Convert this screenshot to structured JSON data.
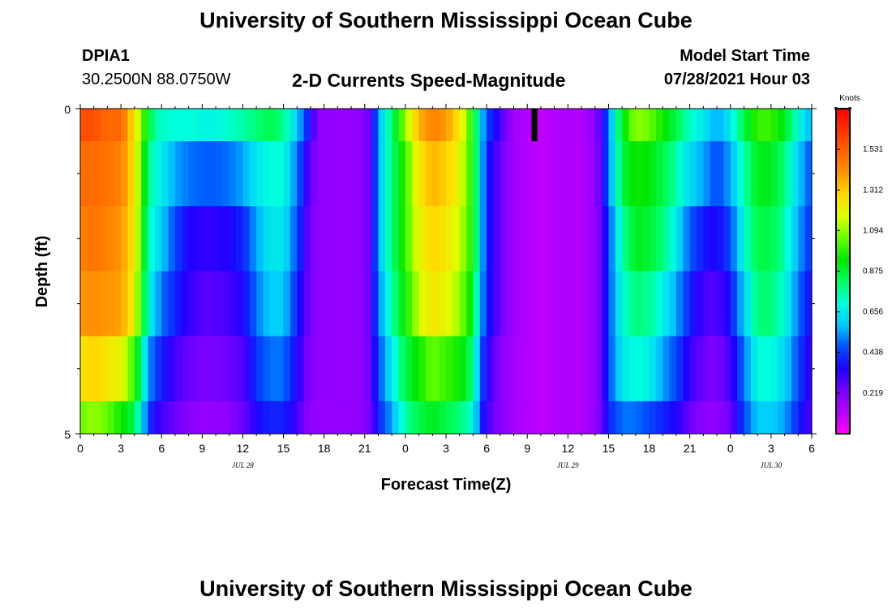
{
  "page": {
    "title_top": "University of Southern Mississippi Ocean Cube",
    "title_bottom": "University of Southern Mississippi Ocean Cube",
    "station": "DPIA1",
    "coords": "30.2500N  88.0750W",
    "plot_title": "2-D Currents Speed-Magnitude",
    "model_label": "Model Start Time",
    "model_time": "07/28/2021 Hour 03"
  },
  "chart_data": {
    "type": "heatmap",
    "title": "2-D Currents Speed-Magnitude",
    "xlabel": "Forecast Time(Z)",
    "ylabel": "Depth (ft)",
    "ylim": [
      0,
      5
    ],
    "xlim_hours": [
      0,
      54
    ],
    "x_tick_labels": [
      "0",
      "3",
      "6",
      "9",
      "12",
      "15",
      "18",
      "21",
      "0",
      "3",
      "6",
      "9",
      "12",
      "15",
      "18",
      "21",
      "0",
      "3",
      "6"
    ],
    "date_labels": [
      {
        "hour": 12,
        "text": "JUL 28"
      },
      {
        "hour": 36,
        "text": "JUL 29"
      },
      {
        "hour": 51,
        "text": "JUL 30"
      }
    ],
    "y_tick_labels": [
      "0",
      "5"
    ],
    "y_minor_ticks": [
      1,
      2,
      3,
      4
    ],
    "depth_bins": [
      "0-0.5",
      "0.5-1.5",
      "1.5-2.5",
      "2.5-3.5",
      "3.5-4.5",
      "4.5-5"
    ],
    "hour_step": 0.5,
    "anchor_hours": [
      0,
      1,
      2,
      3,
      4,
      5,
      5.5,
      6,
      7,
      8,
      9,
      10,
      11,
      12,
      13,
      14,
      15,
      16,
      17,
      17.5,
      18,
      19,
      20,
      21,
      21.5,
      22,
      23,
      24,
      25,
      26,
      27,
      28,
      29,
      29.5,
      30,
      31,
      32,
      33,
      34,
      35,
      36,
      37,
      38,
      38.5,
      39,
      40,
      41,
      42,
      43,
      44,
      45,
      46,
      47,
      48,
      49,
      50,
      51,
      52,
      53,
      54
    ],
    "speed_knots": [
      [
        1.56,
        1.57,
        1.5,
        1.52,
        1.25,
        0.9,
        0.75,
        0.72,
        0.7,
        0.7,
        0.68,
        0.68,
        0.72,
        0.75,
        0.8,
        0.85,
        0.78,
        0.6,
        0.35,
        0.2,
        0.18,
        0.18,
        0.18,
        0.2,
        0.3,
        0.55,
        0.8,
        1.1,
        1.35,
        1.45,
        1.4,
        1.25,
        0.95,
        0.65,
        0.45,
        0.3,
        0.15,
        0.12,
        0.1,
        0.12,
        0.12,
        0.12,
        0.2,
        0.3,
        0.5,
        0.9,
        1.1,
        1.05,
        0.95,
        0.85,
        0.72,
        0.65,
        0.55,
        0.65,
        0.85,
        1.0,
        1.0,
        0.9,
        0.7,
        0.55
      ],
      [
        1.5,
        1.5,
        1.48,
        1.45,
        1.25,
        0.8,
        0.7,
        0.66,
        0.55,
        0.5,
        0.48,
        0.48,
        0.5,
        0.55,
        0.65,
        0.7,
        0.7,
        0.5,
        0.25,
        0.2,
        0.18,
        0.18,
        0.18,
        0.2,
        0.3,
        0.55,
        0.8,
        1.0,
        1.25,
        1.35,
        1.3,
        1.2,
        0.95,
        0.65,
        0.4,
        0.25,
        0.15,
        0.12,
        0.1,
        0.12,
        0.12,
        0.12,
        0.18,
        0.3,
        0.5,
        0.85,
        0.95,
        0.92,
        0.85,
        0.75,
        0.62,
        0.55,
        0.45,
        0.55,
        0.75,
        0.9,
        0.9,
        0.8,
        0.6,
        0.45
      ],
      [
        1.45,
        1.48,
        1.45,
        1.4,
        1.25,
        0.75,
        0.66,
        0.6,
        0.45,
        0.35,
        0.33,
        0.33,
        0.35,
        0.4,
        0.55,
        0.65,
        0.65,
        0.45,
        0.22,
        0.2,
        0.18,
        0.18,
        0.18,
        0.2,
        0.3,
        0.55,
        0.8,
        1.0,
        1.2,
        1.3,
        1.25,
        1.15,
        0.95,
        0.65,
        0.4,
        0.25,
        0.15,
        0.12,
        0.1,
        0.12,
        0.12,
        0.12,
        0.18,
        0.25,
        0.45,
        0.75,
        0.9,
        0.87,
        0.8,
        0.65,
        0.48,
        0.38,
        0.35,
        0.45,
        0.7,
        0.85,
        0.85,
        0.75,
        0.55,
        0.4
      ],
      [
        1.4,
        1.42,
        1.4,
        1.38,
        1.22,
        0.7,
        0.6,
        0.5,
        0.4,
        0.32,
        0.28,
        0.28,
        0.3,
        0.35,
        0.5,
        0.6,
        0.6,
        0.4,
        0.22,
        0.2,
        0.18,
        0.18,
        0.18,
        0.2,
        0.3,
        0.5,
        0.75,
        0.95,
        1.15,
        1.25,
        1.2,
        1.1,
        0.9,
        0.6,
        0.4,
        0.25,
        0.15,
        0.12,
        0.1,
        0.12,
        0.12,
        0.12,
        0.18,
        0.25,
        0.45,
        0.7,
        0.8,
        0.77,
        0.68,
        0.55,
        0.4,
        0.3,
        0.28,
        0.38,
        0.6,
        0.8,
        0.8,
        0.7,
        0.5,
        0.35
      ],
      [
        1.25,
        1.3,
        1.25,
        1.2,
        1.0,
        0.55,
        0.45,
        0.4,
        0.3,
        0.25,
        0.23,
        0.23,
        0.25,
        0.28,
        0.42,
        0.5,
        0.5,
        0.35,
        0.2,
        0.2,
        0.18,
        0.18,
        0.18,
        0.2,
        0.28,
        0.45,
        0.65,
        0.85,
        0.95,
        1.05,
        1.0,
        0.95,
        0.8,
        0.5,
        0.35,
        0.2,
        0.15,
        0.12,
        0.1,
        0.12,
        0.12,
        0.12,
        0.18,
        0.25,
        0.45,
        0.65,
        0.7,
        0.67,
        0.55,
        0.45,
        0.32,
        0.25,
        0.22,
        0.3,
        0.5,
        0.7,
        0.7,
        0.62,
        0.45,
        0.3
      ],
      [
        1.05,
        1.1,
        1.05,
        0.95,
        0.85,
        0.45,
        0.35,
        0.3,
        0.25,
        0.2,
        0.18,
        0.18,
        0.2,
        0.25,
        0.35,
        0.4,
        0.4,
        0.3,
        0.18,
        0.18,
        0.18,
        0.18,
        0.18,
        0.2,
        0.25,
        0.4,
        0.55,
        0.75,
        0.85,
        0.9,
        0.85,
        0.8,
        0.7,
        0.45,
        0.3,
        0.2,
        0.15,
        0.12,
        0.1,
        0.12,
        0.12,
        0.12,
        0.18,
        0.25,
        0.4,
        0.5,
        0.5,
        0.45,
        0.4,
        0.35,
        0.25,
        0.2,
        0.18,
        0.25,
        0.45,
        0.6,
        0.6,
        0.55,
        0.4,
        0.28
      ]
    ],
    "speed_unit": "knots",
    "vmin": 0.0,
    "vmax": 1.75,
    "current_time_marker_hour": 33.5,
    "colorbar": {
      "label": "Knots",
      "tick_labels": [
        "1.531",
        "1.312",
        "1.094",
        "0.875",
        "0.656",
        "0.438",
        "0.219"
      ],
      "tick_values": [
        1.531,
        1.312,
        1.094,
        0.875,
        0.656,
        0.438,
        0.219
      ],
      "palette": [
        "#ff00ff",
        "#b400ff",
        "#7800ff",
        "#1e00ff",
        "#0050ff",
        "#00c8ff",
        "#00ffdc",
        "#00ff64",
        "#00e600",
        "#64ff00",
        "#dcff00",
        "#ffdc00",
        "#ff9600",
        "#ff6400",
        "#ff3200",
        "#ff0000"
      ]
    }
  }
}
